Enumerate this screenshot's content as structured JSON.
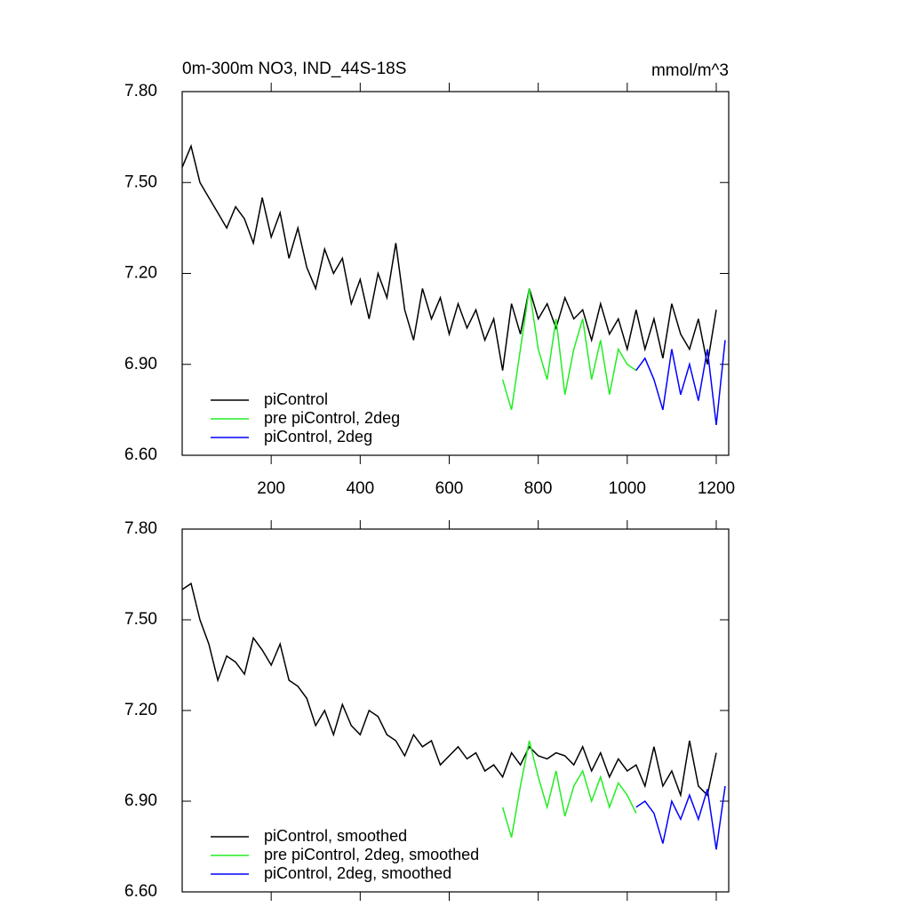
{
  "chart_data": [
    {
      "type": "line",
      "title": "0m-300m NO3, IND_44S-18S",
      "units": "mmol/m^3",
      "xlim": [
        0,
        1228
      ],
      "xticks": [
        200,
        400,
        600,
        800,
        1000,
        1200
      ],
      "ylim": [
        6.6,
        7.8
      ],
      "yticks": [
        {
          "value": 6.6,
          "label": "6.60"
        },
        {
          "value": 6.9,
          "label": "6.90"
        },
        {
          "value": 7.2,
          "label": "7.20"
        },
        {
          "value": 7.5,
          "label": "7.50"
        },
        {
          "value": 7.8,
          "label": "7.80"
        }
      ],
      "series": [
        {
          "name": "piControl",
          "color": "#000000",
          "x": [
            0,
            20,
            40,
            60,
            80,
            100,
            120,
            140,
            160,
            180,
            200,
            220,
            240,
            260,
            280,
            300,
            320,
            340,
            360,
            380,
            400,
            420,
            440,
            460,
            480,
            500,
            520,
            540,
            560,
            580,
            600,
            620,
            640,
            660,
            680,
            700,
            720,
            740,
            760,
            780,
            800,
            820,
            840,
            860,
            880,
            900,
            920,
            940,
            960,
            980,
            1000,
            1020,
            1040,
            1060,
            1080,
            1100,
            1120,
            1140,
            1160,
            1180,
            1200
          ],
          "values": [
            7.55,
            7.62,
            7.5,
            7.45,
            7.4,
            7.35,
            7.42,
            7.38,
            7.3,
            7.45,
            7.32,
            7.4,
            7.25,
            7.35,
            7.22,
            7.15,
            7.28,
            7.2,
            7.25,
            7.1,
            7.18,
            7.05,
            7.2,
            7.12,
            7.3,
            7.08,
            6.98,
            7.15,
            7.05,
            7.12,
            7.0,
            7.1,
            7.02,
            7.08,
            6.98,
            7.05,
            6.88,
            7.1,
            7.0,
            7.15,
            7.05,
            7.1,
            7.02,
            7.12,
            7.05,
            7.08,
            6.98,
            7.1,
            7.0,
            7.05,
            6.95,
            7.08,
            6.95,
            7.05,
            6.92,
            7.1,
            7.0,
            6.95,
            7.05,
            6.9,
            7.08
          ]
        },
        {
          "name": "pre piControl, 2deg",
          "color": "#22ee22",
          "x": [
            720,
            740,
            760,
            780,
            800,
            820,
            840,
            860,
            880,
            900,
            920,
            940,
            960,
            980,
            1000,
            1020
          ],
          "values": [
            6.85,
            6.75,
            6.95,
            7.15,
            6.95,
            6.85,
            7.05,
            6.8,
            6.95,
            7.05,
            6.85,
            6.98,
            6.8,
            6.95,
            6.9,
            6.88
          ]
        },
        {
          "name": "piControl, 2deg",
          "color": "#0000ff",
          "x": [
            1020,
            1040,
            1060,
            1080,
            1100,
            1120,
            1140,
            1160,
            1180,
            1200,
            1220
          ],
          "values": [
            6.88,
            6.92,
            6.85,
            6.75,
            6.95,
            6.8,
            6.9,
            6.78,
            6.95,
            6.7,
            6.98
          ]
        }
      ]
    },
    {
      "type": "line",
      "xlim": [
        0,
        1228
      ],
      "ylim": [
        6.6,
        7.8
      ],
      "yticks": [
        {
          "value": 6.6,
          "label": "6.60"
        },
        {
          "value": 6.9,
          "label": "6.90"
        },
        {
          "value": 7.2,
          "label": "7.20"
        },
        {
          "value": 7.5,
          "label": "7.50"
        },
        {
          "value": 7.8,
          "label": "7.80"
        }
      ],
      "series": [
        {
          "name": "piControl, smoothed",
          "color": "#000000",
          "x": [
            0,
            20,
            40,
            60,
            80,
            100,
            120,
            140,
            160,
            180,
            200,
            220,
            240,
            260,
            280,
            300,
            320,
            340,
            360,
            380,
            400,
            420,
            440,
            460,
            480,
            500,
            520,
            540,
            560,
            580,
            600,
            620,
            640,
            660,
            680,
            700,
            720,
            740,
            760,
            780,
            800,
            820,
            840,
            860,
            880,
            900,
            920,
            940,
            960,
            980,
            1000,
            1020,
            1040,
            1060,
            1080,
            1100,
            1120,
            1140,
            1160,
            1180,
            1200
          ],
          "values": [
            7.6,
            7.62,
            7.5,
            7.42,
            7.3,
            7.38,
            7.36,
            7.32,
            7.44,
            7.4,
            7.35,
            7.42,
            7.3,
            7.28,
            7.24,
            7.15,
            7.2,
            7.12,
            7.22,
            7.15,
            7.12,
            7.2,
            7.18,
            7.12,
            7.1,
            7.05,
            7.12,
            7.08,
            7.1,
            7.02,
            7.05,
            7.08,
            7.04,
            7.06,
            7.0,
            7.02,
            6.98,
            7.06,
            7.02,
            7.08,
            7.05,
            7.04,
            7.06,
            7.05,
            7.02,
            7.08,
            7.0,
            7.06,
            6.98,
            7.04,
            7.0,
            7.02,
            6.95,
            7.08,
            6.95,
            7.0,
            6.92,
            7.1,
            6.95,
            6.92,
            7.06
          ]
        },
        {
          "name": "pre piControl, 2deg, smoothed",
          "color": "#22ee22",
          "x": [
            720,
            740,
            760,
            780,
            800,
            820,
            840,
            860,
            880,
            900,
            920,
            940,
            960,
            980,
            1000,
            1020
          ],
          "values": [
            6.88,
            6.78,
            6.95,
            7.1,
            6.98,
            6.88,
            7.0,
            6.85,
            6.95,
            7.0,
            6.9,
            6.98,
            6.88,
            6.96,
            6.92,
            6.86
          ]
        },
        {
          "name": "piControl, 2deg, smoothed",
          "color": "#0000ff",
          "x": [
            1020,
            1040,
            1060,
            1080,
            1100,
            1120,
            1140,
            1160,
            1180,
            1200,
            1220
          ],
          "values": [
            6.88,
            6.9,
            6.86,
            6.76,
            6.9,
            6.84,
            6.92,
            6.84,
            6.94,
            6.74,
            6.95
          ]
        }
      ]
    }
  ]
}
